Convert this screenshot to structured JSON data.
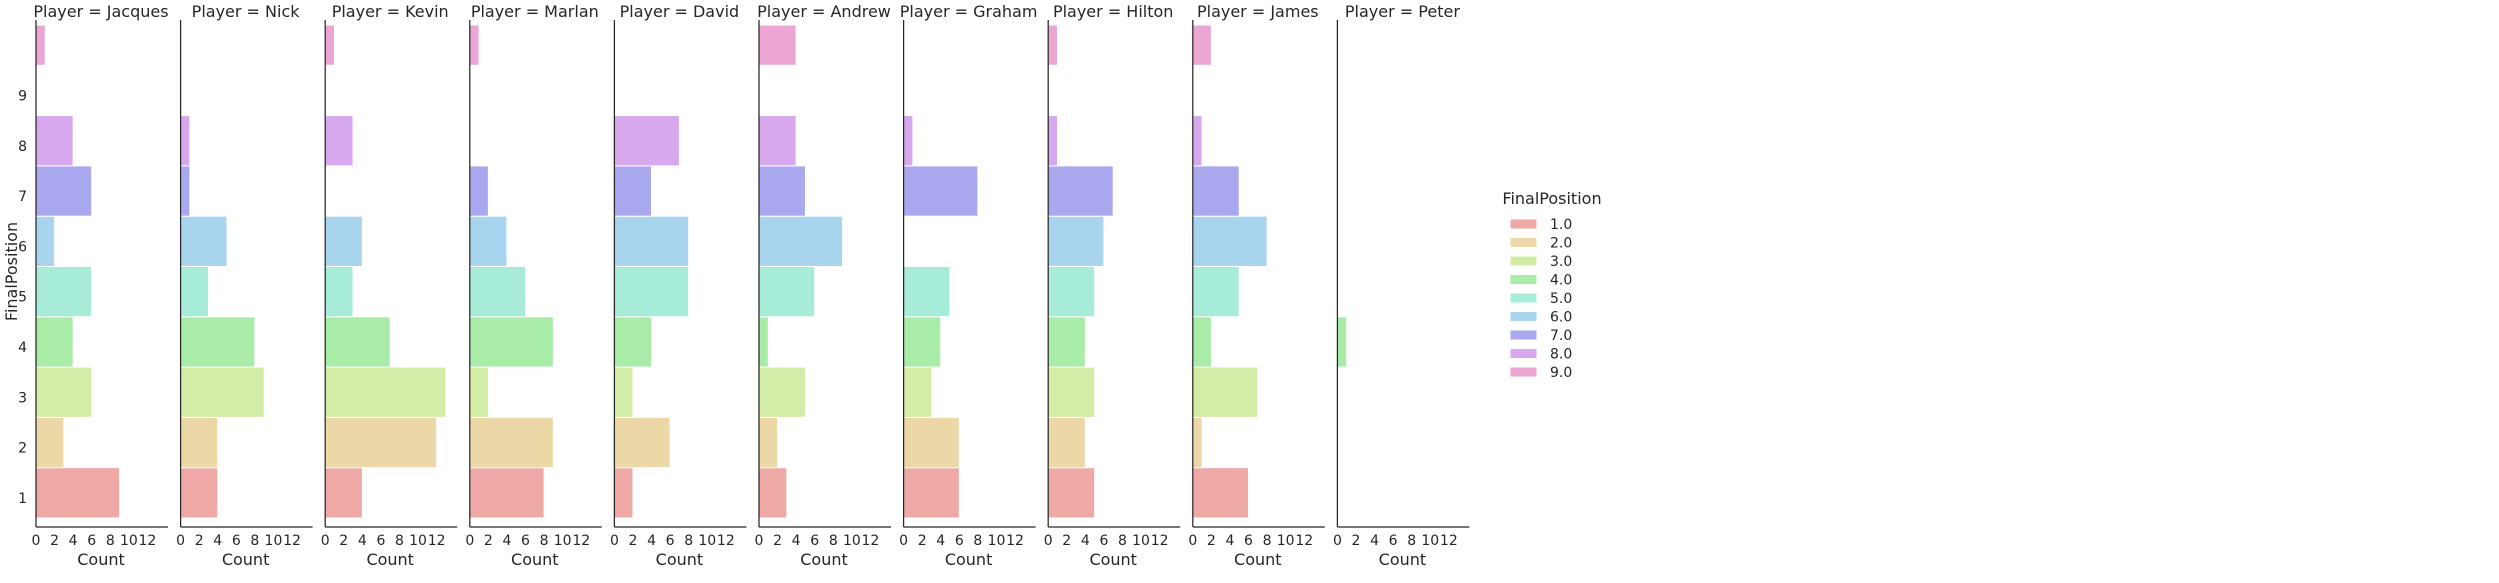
{
  "chart_data": {
    "type": "bar",
    "orientation": "horizontal",
    "facet_label_prefix": "Player = ",
    "xlabel": "Count",
    "ylabel": "FinalPosition",
    "xlim": [
      0,
      14
    ],
    "x_ticks": [
      0,
      2,
      4,
      6,
      8,
      10,
      12
    ],
    "ylim": [
      0.5,
      10.5
    ],
    "y_ticks": [
      1,
      2,
      3,
      4,
      5,
      6,
      7,
      8,
      9
    ],
    "legend": {
      "title": "FinalPosition",
      "placement": "right",
      "labels": [
        "1.0",
        "2.0",
        "3.0",
        "4.0",
        "5.0",
        "6.0",
        "7.0",
        "8.0",
        "9.0"
      ]
    },
    "bins": [
      {
        "lo": 0.6,
        "hi": 1.6,
        "position": 1
      },
      {
        "lo": 1.6,
        "hi": 2.6,
        "position": 2
      },
      {
        "lo": 2.6,
        "hi": 3.6,
        "position": 3
      },
      {
        "lo": 3.6,
        "hi": 4.6,
        "position": 4
      },
      {
        "lo": 4.6,
        "hi": 5.6,
        "position": 5
      },
      {
        "lo": 5.6,
        "hi": 6.6,
        "position": 6
      },
      {
        "lo": 6.6,
        "hi": 7.6,
        "position": 7
      },
      {
        "lo": 7.6,
        "hi": 8.6,
        "position": 8
      },
      {
        "lo": 8.6,
        "hi": 9.6,
        "position": 9
      },
      {
        "lo": 9.6,
        "hi": 10.4,
        "position": 9
      }
    ],
    "colors": [
      "#eea8a6",
      "#ecd8a6",
      "#d3eca6",
      "#a8eca8",
      "#a6ecd8",
      "#a8d4ee",
      "#aaa8ee",
      "#d8a8ee",
      "#eca6d4"
    ],
    "panels": [
      {
        "name": "Jacques",
        "counts": [
          9,
          3,
          6,
          4,
          6,
          2,
          6,
          4,
          0,
          1
        ]
      },
      {
        "name": "Nick",
        "counts": [
          4,
          4,
          9,
          8,
          3,
          5,
          1,
          1,
          0,
          0
        ]
      },
      {
        "name": "Kevin",
        "counts": [
          4,
          12,
          13,
          7,
          3,
          4,
          0,
          3,
          0,
          1
        ]
      },
      {
        "name": "Marlan",
        "counts": [
          8,
          9,
          2,
          9,
          6,
          4,
          2,
          0,
          0,
          1
        ]
      },
      {
        "name": "David",
        "counts": [
          2,
          6,
          2,
          4,
          8,
          8,
          4,
          7,
          0,
          0
        ]
      },
      {
        "name": "Andrew",
        "counts": [
          3,
          2,
          5,
          1,
          6,
          9,
          5,
          4,
          0,
          4
        ]
      },
      {
        "name": "Graham",
        "counts": [
          6,
          6,
          3,
          4,
          5,
          0,
          8,
          1,
          0,
          0
        ]
      },
      {
        "name": "Hilton",
        "counts": [
          5,
          4,
          5,
          4,
          5,
          6,
          7,
          1,
          0,
          1
        ]
      },
      {
        "name": "James",
        "counts": [
          6,
          1,
          7,
          2,
          5,
          8,
          5,
          1,
          0,
          2
        ]
      },
      {
        "name": "Peter",
        "counts": [
          0,
          0,
          0,
          1,
          0,
          0,
          0,
          0,
          0,
          0
        ]
      }
    ]
  }
}
